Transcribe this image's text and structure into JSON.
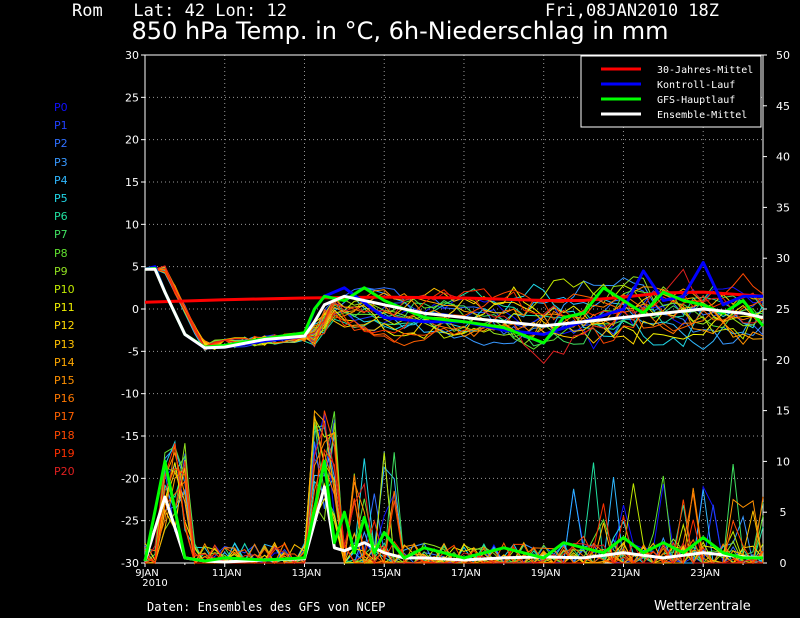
{
  "header": {
    "location": "Rom   Lat: 42 Lon: 12",
    "date": "Fri,08JAN2010 18Z"
  },
  "chart_data": {
    "type": "line",
    "title": "850 hPa Temp. in °C, 6h-Niederschlag in mm",
    "x_ticks": [
      "9JAN",
      "11JAN",
      "13JAN",
      "15JAN",
      "17JAN",
      "19JAN",
      "21JAN",
      "23JAN"
    ],
    "x_sub_label": "2010",
    "x_range_days": [
      0,
      15.5
    ],
    "y_left": {
      "ylim": [
        -30,
        30
      ],
      "ticks": [
        "30",
        "25",
        "20",
        "15",
        "10",
        "5",
        "0",
        "-5",
        "-10",
        "-15",
        "-20",
        "-25",
        "-30"
      ]
    },
    "y_right": {
      "ylim": [
        0,
        50
      ],
      "ticks": [
        "50",
        "45",
        "40",
        "35",
        "30",
        "25",
        "20",
        "15",
        "10",
        "5",
        "0"
      ]
    },
    "grid": true,
    "legend_position": "top-right",
    "legend": [
      {
        "name": "30-Jahres-Mittel",
        "color": "#ff0000"
      },
      {
        "name": "Kontroll-Lauf",
        "color": "#0000ff"
      },
      {
        "name": "GFS-Hauptlauf",
        "color": "#00ff00"
      },
      {
        "name": "Ensemble-Mittel",
        "color": "#ffffff"
      }
    ],
    "members": [
      {
        "name": "P0",
        "color": "#1010ff"
      },
      {
        "name": "P1",
        "color": "#2040ff"
      },
      {
        "name": "P2",
        "color": "#3070ff"
      },
      {
        "name": "P3",
        "color": "#3898ff"
      },
      {
        "name": "P4",
        "color": "#30b8ff"
      },
      {
        "name": "P5",
        "color": "#20d8e8"
      },
      {
        "name": "P6",
        "color": "#20e0a0"
      },
      {
        "name": "P7",
        "color": "#40e060"
      },
      {
        "name": "P8",
        "color": "#60e030"
      },
      {
        "name": "P9",
        "color": "#90e020"
      },
      {
        "name": "P10",
        "color": "#c0e800"
      },
      {
        "name": "P11",
        "color": "#f0f000"
      },
      {
        "name": "P12",
        "color": "#ffd800"
      },
      {
        "name": "P13",
        "color": "#ffc000"
      },
      {
        "name": "P14",
        "color": "#ffa800"
      },
      {
        "name": "P15",
        "color": "#ff9000"
      },
      {
        "name": "P16",
        "color": "#ff7800"
      },
      {
        "name": "P17",
        "color": "#ff6000"
      },
      {
        "name": "P18",
        "color": "#ff4800"
      },
      {
        "name": "P19",
        "color": "#ff3000"
      },
      {
        "name": "P20",
        "color": "#e02020"
      }
    ],
    "series": [
      {
        "role": "climatology",
        "axis": "temp",
        "color": "#ff0000",
        "x": [
          0,
          2,
          4,
          6,
          8,
          10,
          11,
          12,
          13,
          14,
          15.5
        ],
        "y": [
          0.8,
          1.1,
          1.3,
          1.4,
          1.3,
          1.0,
          1.0,
          1.4,
          1.9,
          2.0,
          1.5
        ]
      },
      {
        "role": "control",
        "axis": "temp",
        "color": "#0000ff",
        "x": [
          0,
          0.25,
          0.5,
          1,
          1.5,
          2,
          3,
          4,
          4.25,
          4.5,
          5,
          6,
          7,
          8,
          9,
          10,
          11,
          12,
          12.5,
          13,
          13.5,
          14,
          14.5,
          15,
          15.5
        ],
        "y": [
          4.7,
          5.0,
          2.0,
          -3.0,
          -4.6,
          -4.5,
          -3.8,
          -3.2,
          0,
          1.5,
          2.5,
          -1,
          -1.5,
          -1.5,
          -2.5,
          -3,
          -1.5,
          0,
          4.5,
          1.0,
          1.5,
          5.5,
          0.5,
          1.5,
          1.5
        ]
      },
      {
        "role": "operational",
        "axis": "temp",
        "color": "#00ff00",
        "x": [
          0,
          0.25,
          0.5,
          1,
          1.5,
          2,
          3,
          4,
          4.25,
          4.5,
          5,
          5.5,
          6,
          7,
          8,
          9,
          10,
          10.5,
          11,
          11.5,
          12,
          12.5,
          13,
          13.5,
          14,
          14.5,
          15,
          15.5
        ],
        "y": [
          4.7,
          4.8,
          2.0,
          -3.0,
          -4.5,
          -4.3,
          -3.5,
          -2.8,
          0,
          1.5,
          1.0,
          2.5,
          1.0,
          -1.0,
          -1.5,
          -2.2,
          -4.0,
          -1.0,
          -0.5,
          2.5,
          1.0,
          -0.5,
          2.0,
          1.0,
          0.5,
          -0.5,
          1.0,
          -2.0
        ]
      },
      {
        "role": "mean",
        "axis": "temp",
        "color": "#ffffff",
        "x": [
          0,
          0.25,
          0.5,
          1,
          1.5,
          2,
          3,
          4,
          4.25,
          4.5,
          5,
          6,
          7,
          8,
          9,
          10,
          11,
          12,
          13,
          14,
          15,
          15.5
        ],
        "y": [
          4.7,
          4.7,
          2.0,
          -3.0,
          -4.6,
          -4.5,
          -3.6,
          -3.2,
          -1.5,
          0.5,
          1.5,
          0.5,
          -0.5,
          -1.0,
          -1.5,
          -2.0,
          -1.5,
          -1.0,
          -0.5,
          0,
          -0.5,
          -1.0
        ]
      },
      {
        "role": "precip-mean",
        "axis": "precip",
        "color": "#ffffff",
        "x": [
          0,
          0.5,
          1,
          1.5,
          2,
          3,
          4,
          4.5,
          4.75,
          5,
          5.5,
          6,
          6.5,
          7,
          8,
          9,
          10,
          11,
          12,
          13,
          14,
          15,
          15.5
        ],
        "y": [
          0.2,
          6.5,
          0.5,
          0.2,
          0.1,
          0.3,
          0.4,
          7.5,
          1.5,
          1.2,
          2.0,
          1.0,
          0.5,
          0.5,
          0.3,
          0.5,
          0.6,
          0.5,
          1.0,
          0.5,
          1.0,
          0.6,
          0.5
        ]
      },
      {
        "role": "precip-operational",
        "axis": "precip",
        "color": "#00ff00",
        "x": [
          0,
          0.5,
          1,
          1.5,
          2,
          3,
          4,
          4.5,
          4.75,
          5,
          5.25,
          5.5,
          5.75,
          6,
          6.5,
          7,
          8,
          9,
          10,
          10.5,
          11,
          11.5,
          12,
          12.5,
          13,
          13.5,
          14,
          14.5,
          15,
          15.5
        ],
        "y": [
          0.2,
          10.0,
          0.5,
          0.2,
          0.5,
          0.3,
          0.5,
          10.0,
          2.0,
          5.0,
          1.0,
          4.5,
          1.0,
          3.0,
          0.5,
          1.5,
          0.5,
          1.5,
          0.5,
          2.0,
          1.5,
          1.0,
          2.5,
          1.0,
          2.0,
          1.0,
          2.5,
          1.0,
          0.5,
          0.5
        ]
      }
    ]
  },
  "footer": {
    "source": "Daten: Ensembles des GFS von NCEP",
    "brand": "Wetterzentrale"
  }
}
